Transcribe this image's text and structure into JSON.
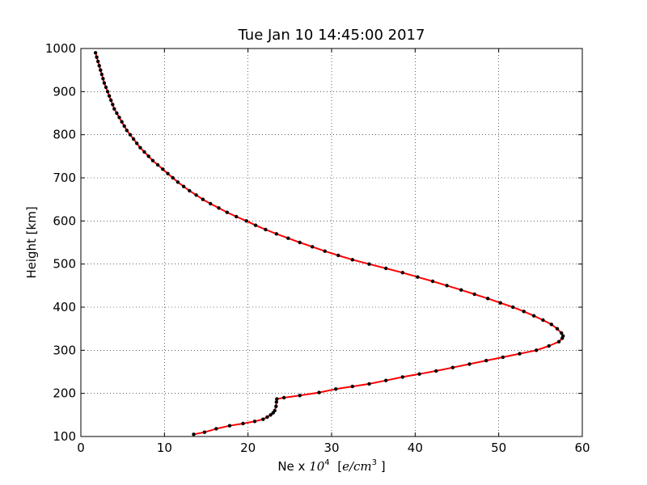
{
  "chart_data": {
    "type": "line",
    "title": "Tue Jan 10 14:45:00 2017",
    "xlabel_prefix": "Ne x ",
    "xlabel_math_base": "10",
    "xlabel_math_exp": "4",
    "xlabel_unit_open": "[",
    "xlabel_unit_var": "e/cm",
    "xlabel_unit_exp": "3",
    "xlabel_unit_close": "]",
    "ylabel": "Height [km]",
    "xlim": [
      0,
      60
    ],
    "ylim": [
      100,
      1000
    ],
    "xticks": [
      0,
      10,
      20,
      30,
      40,
      50,
      60
    ],
    "yticks": [
      100,
      200,
      300,
      400,
      500,
      600,
      700,
      800,
      900,
      1000
    ],
    "grid": true,
    "line_color": "#ff0000",
    "marker_color": "#000000",
    "series": [
      {
        "points": [
          [
            13.5,
            105
          ],
          [
            14.8,
            110
          ],
          [
            16.2,
            118
          ],
          [
            17.8,
            125
          ],
          [
            19.4,
            130
          ],
          [
            20.8,
            135
          ],
          [
            21.8,
            140
          ],
          [
            22.3,
            145
          ],
          [
            22.7,
            150
          ],
          [
            23.0,
            155
          ],
          [
            23.2,
            160
          ],
          [
            23.35,
            170
          ],
          [
            23.4,
            180
          ],
          [
            23.45,
            187
          ],
          [
            24.3,
            190
          ],
          [
            26.2,
            195
          ],
          [
            28.5,
            202
          ],
          [
            30.5,
            210
          ],
          [
            32.5,
            216
          ],
          [
            34.5,
            222
          ],
          [
            36.5,
            230
          ],
          [
            38.5,
            238
          ],
          [
            40.5,
            245
          ],
          [
            42.5,
            252
          ],
          [
            44.5,
            260
          ],
          [
            46.5,
            268
          ],
          [
            48.5,
            276
          ],
          [
            50.5,
            284
          ],
          [
            52.5,
            292
          ],
          [
            54.5,
            300
          ],
          [
            56.0,
            310
          ],
          [
            57.2,
            320
          ],
          [
            57.6,
            328
          ],
          [
            57.7,
            333
          ],
          [
            57.5,
            340
          ],
          [
            57.0,
            350
          ],
          [
            56.3,
            360
          ],
          [
            55.3,
            370
          ],
          [
            54.2,
            380
          ],
          [
            53.0,
            390
          ],
          [
            51.7,
            400
          ],
          [
            50.2,
            410
          ],
          [
            48.7,
            420
          ],
          [
            47.1,
            430
          ],
          [
            45.5,
            440
          ],
          [
            43.8,
            450
          ],
          [
            42.1,
            460
          ],
          [
            40.3,
            470
          ],
          [
            38.5,
            480
          ],
          [
            36.5,
            490
          ],
          [
            34.5,
            500
          ],
          [
            32.5,
            510
          ],
          [
            30.8,
            520
          ],
          [
            29.2,
            530
          ],
          [
            27.7,
            540
          ],
          [
            26.2,
            550
          ],
          [
            24.8,
            560
          ],
          [
            23.4,
            570
          ],
          [
            22.1,
            580
          ],
          [
            20.9,
            590
          ],
          [
            19.8,
            600
          ],
          [
            18.6,
            610
          ],
          [
            17.5,
            620
          ],
          [
            16.5,
            630
          ],
          [
            15.5,
            640
          ],
          [
            14.6,
            650
          ],
          [
            13.8,
            660
          ],
          [
            13.0,
            670
          ],
          [
            12.3,
            680
          ],
          [
            11.6,
            690
          ],
          [
            11.0,
            700
          ],
          [
            10.4,
            710
          ],
          [
            9.8,
            720
          ],
          [
            9.2,
            730
          ],
          [
            8.6,
            740
          ],
          [
            8.1,
            750
          ],
          [
            7.6,
            760
          ],
          [
            7.1,
            770
          ],
          [
            6.7,
            780
          ],
          [
            6.3,
            790
          ],
          [
            5.9,
            800
          ],
          [
            5.5,
            810
          ],
          [
            5.2,
            820
          ],
          [
            4.9,
            830
          ],
          [
            4.6,
            840
          ],
          [
            4.3,
            850
          ],
          [
            4.0,
            860
          ],
          [
            3.8,
            870
          ],
          [
            3.6,
            880
          ],
          [
            3.4,
            890
          ],
          [
            3.2,
            900
          ],
          [
            3.0,
            910
          ],
          [
            2.8,
            920
          ],
          [
            2.65,
            930
          ],
          [
            2.5,
            940
          ],
          [
            2.35,
            950
          ],
          [
            2.2,
            960
          ],
          [
            2.05,
            970
          ],
          [
            1.9,
            980
          ],
          [
            1.75,
            990
          ]
        ]
      }
    ]
  }
}
